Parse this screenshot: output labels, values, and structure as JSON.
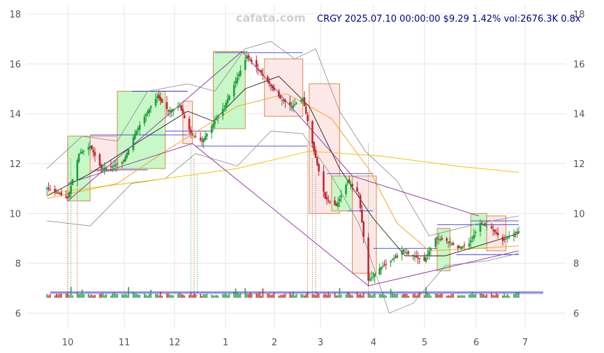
{
  "header": {
    "watermark": "cafata.com",
    "quote": "CRGY 2025.07.10 00:00:00 $9.29 1.42% vol:2676.3K 0.8x"
  },
  "chart_data": {
    "type": "candlestick",
    "symbol": "CRGY",
    "last_date": "2025.07.10",
    "last_price": 9.29,
    "change_pct": 1.42,
    "volume_k": 2676.3,
    "volume_ratio": 0.8,
    "x_tick_labels": [
      "10",
      "11",
      "12",
      "1",
      "2",
      "3",
      "4",
      "5",
      "6",
      "7"
    ],
    "y_ticks": [
      6,
      8,
      10,
      12,
      14,
      16,
      18
    ],
    "ylim": [
      5.6,
      18.4
    ],
    "grid": true,
    "approx_close_path": [
      [
        "2024-09-18",
        11.0
      ],
      [
        "2024-09-25",
        10.8
      ],
      [
        "2024-10-01",
        10.6
      ],
      [
        "2024-10-08",
        12.4
      ],
      [
        "2024-10-15",
        12.7
      ],
      [
        "2024-10-22",
        11.8
      ],
      [
        "2024-10-29",
        11.9
      ],
      [
        "2024-11-05",
        12.1
      ],
      [
        "2024-11-12",
        13.2
      ],
      [
        "2024-11-19",
        14.0
      ],
      [
        "2024-11-26",
        14.7
      ],
      [
        "2024-12-03",
        14.1
      ],
      [
        "2024-12-10",
        14.3
      ],
      [
        "2024-12-17",
        13.2
      ],
      [
        "2024-12-24",
        12.9
      ],
      [
        "2024-12-31",
        13.6
      ],
      [
        "2025-01-07",
        14.3
      ],
      [
        "2025-01-14",
        15.3
      ],
      [
        "2025-01-21",
        16.3
      ],
      [
        "2025-01-28",
        15.8
      ],
      [
        "2025-02-04",
        15.2
      ],
      [
        "2025-02-11",
        14.6
      ],
      [
        "2025-02-18",
        14.3
      ],
      [
        "2025-02-25",
        14.6
      ],
      [
        "2025-03-04",
        12.5
      ],
      [
        "2025-03-11",
        10.6
      ],
      [
        "2025-03-18",
        10.3
      ],
      [
        "2025-03-25",
        11.3
      ],
      [
        "2025-04-01",
        10.8
      ],
      [
        "2025-04-07",
        7.3
      ],
      [
        "2025-04-14",
        7.8
      ],
      [
        "2025-04-21",
        8.1
      ],
      [
        "2025-04-28",
        8.5
      ],
      [
        "2025-05-05",
        8.3
      ],
      [
        "2025-05-12",
        8.1
      ],
      [
        "2025-05-19",
        9.0
      ],
      [
        "2025-05-26",
        8.9
      ],
      [
        "2025-06-02",
        8.6
      ],
      [
        "2025-06-09",
        8.8
      ],
      [
        "2025-06-16",
        9.6
      ],
      [
        "2025-06-23",
        9.4
      ],
      [
        "2025-06-30",
        8.9
      ],
      [
        "2025-07-07",
        9.2
      ],
      [
        "2025-07-10",
        9.29
      ]
    ],
    "approx_ma_long_path": [
      [
        "2024-09-18",
        10.8
      ],
      [
        "2024-12-01",
        11.4
      ],
      [
        "2025-01-15",
        11.8
      ],
      [
        "2025-03-01",
        12.5
      ],
      [
        "2025-04-15",
        12.3
      ],
      [
        "2025-06-01",
        11.9
      ],
      [
        "2025-07-10",
        11.65
      ]
    ],
    "approx_ma_mid_path": [
      [
        "2024-09-18",
        10.6
      ],
      [
        "2024-11-01",
        11.2
      ],
      [
        "2024-12-01",
        12.5
      ],
      [
        "2025-01-15",
        14.3
      ],
      [
        "2025-02-15",
        14.8
      ],
      [
        "2025-03-15",
        13.8
      ],
      [
        "2025-04-07",
        11.8
      ],
      [
        "2025-04-25",
        9.6
      ],
      [
        "2025-05-15",
        8.5
      ],
      [
        "2025-06-15",
        8.6
      ],
      [
        "2025-07-10",
        8.7
      ]
    ],
    "approx_ma_short_path": [
      [
        "2024-09-18",
        10.7
      ],
      [
        "2024-10-15",
        11.6
      ],
      [
        "2024-11-15",
        12.9
      ],
      [
        "2024-12-15",
        14.1
      ],
      [
        "2024-12-31",
        13.7
      ],
      [
        "2025-01-20",
        15.0
      ],
      [
        "2025-02-10",
        15.5
      ],
      [
        "2025-03-01",
        14.3
      ],
      [
        "2025-03-20",
        11.8
      ],
      [
        "2025-04-10",
        9.8
      ],
      [
        "2025-04-30",
        8.3
      ],
      [
        "2025-05-25",
        8.3
      ],
      [
        "2025-06-20",
        8.8
      ],
      [
        "2025-07-10",
        9.2
      ]
    ],
    "approx_bollinger_upper_path": [
      [
        "2024-09-18",
        11.8
      ],
      [
        "2024-10-10",
        13.1
      ],
      [
        "2024-11-01",
        12.9
      ],
      [
        "2024-11-20",
        14.9
      ],
      [
        "2024-12-15",
        15.2
      ],
      [
        "2025-01-01",
        14.9
      ],
      [
        "2025-01-20",
        16.6
      ],
      [
        "2025-02-05",
        16.9
      ],
      [
        "2025-02-20",
        16.2
      ],
      [
        "2025-03-05",
        16.6
      ],
      [
        "2025-03-20",
        14.1
      ],
      [
        "2025-04-05",
        12.5
      ],
      [
        "2025-04-25",
        11.3
      ],
      [
        "2025-05-15",
        9.1
      ],
      [
        "2025-06-15",
        9.6
      ],
      [
        "2025-07-10",
        9.9
      ]
    ],
    "approx_bollinger_lower_path": [
      [
        "2024-09-18",
        9.7
      ],
      [
        "2024-10-15",
        9.5
      ],
      [
        "2024-11-10",
        11.2
      ],
      [
        "2024-12-01",
        11.4
      ],
      [
        "2024-12-20",
        12.4
      ],
      [
        "2025-01-15",
        11.9
      ],
      [
        "2025-02-05",
        13.3
      ],
      [
        "2025-02-25",
        13.2
      ],
      [
        "2025-03-15",
        11.5
      ],
      [
        "2025-04-01",
        9.6
      ],
      [
        "2025-04-20",
        6.0
      ],
      [
        "2025-05-05",
        6.4
      ],
      [
        "2025-05-25",
        7.9
      ],
      [
        "2025-06-20",
        8.1
      ],
      [
        "2025-07-10",
        8.4
      ]
    ],
    "zones": [
      {
        "kind": "up",
        "start": "2024-10-01",
        "end": "2024-10-15",
        "low": 10.5,
        "high": 13.1
      },
      {
        "kind": "down",
        "start": "2024-10-15",
        "end": "2024-11-01",
        "low": 11.7,
        "high": 13.1
      },
      {
        "kind": "up",
        "start": "2024-11-01",
        "end": "2024-12-01",
        "low": 11.8,
        "high": 14.9
      },
      {
        "kind": "down",
        "start": "2024-12-12",
        "end": "2024-12-18",
        "low": 12.8,
        "high": 14.5
      },
      {
        "kind": "up",
        "start": "2024-12-31",
        "end": "2025-01-20",
        "low": 13.4,
        "high": 16.5
      },
      {
        "kind": "down",
        "start": "2025-02-01",
        "end": "2025-02-25",
        "low": 13.9,
        "high": 16.2
      },
      {
        "kind": "down",
        "start": "2025-03-01",
        "end": "2025-03-20",
        "low": 10.0,
        "high": 15.2
      },
      {
        "kind": "up",
        "start": "2025-03-15",
        "end": "2025-03-28",
        "low": 10.1,
        "high": 11.5
      },
      {
        "kind": "down",
        "start": "2025-03-28",
        "end": "2025-04-12",
        "low": 7.6,
        "high": 11.5
      },
      {
        "kind": "up",
        "start": "2025-05-20",
        "end": "2025-05-28",
        "low": 7.7,
        "high": 9.4
      },
      {
        "kind": "up",
        "start": "2025-06-10",
        "end": "2025-06-20",
        "low": 8.6,
        "high": 10.0
      },
      {
        "kind": "down",
        "start": "2025-06-20",
        "end": "2025-07-02",
        "low": 8.5,
        "high": 9.9
      }
    ],
    "levels": [
      {
        "start": "2024-10-15",
        "end": "2024-12-15",
        "y": 13.15
      },
      {
        "start": "2024-10-18",
        "end": "2024-11-20",
        "y": 11.75
      },
      {
        "start": "2024-11-10",
        "end": "2024-12-15",
        "y": 14.9
      },
      {
        "start": "2024-12-01",
        "end": "2024-12-31",
        "y": 13.3
      },
      {
        "start": "2024-12-20",
        "end": "2025-02-28",
        "y": 12.7
      },
      {
        "start": "2025-01-01",
        "end": "2025-02-25",
        "y": 16.45
      },
      {
        "start": "2025-03-12",
        "end": "2025-04-10",
        "y": 11.6
      },
      {
        "start": "2025-03-25",
        "end": "2025-04-10",
        "y": 10.1
      },
      {
        "start": "2025-04-10",
        "end": "2025-05-20",
        "y": 8.6
      },
      {
        "start": "2025-05-20",
        "end": "2025-07-10",
        "y": 9.55
      },
      {
        "start": "2025-06-01",
        "end": "2025-07-10",
        "y": 8.35
      },
      {
        "start": "2025-06-10",
        "end": "2025-07-10",
        "y": 9.7
      }
    ],
    "trendlines": [
      {
        "from": [
          "2024-10-01",
          10.5
        ],
        "to": [
          "2025-01-18",
          16.5
        ]
      },
      {
        "from": [
          "2024-10-01",
          11.2
        ],
        "to": [
          "2024-12-18",
          12.8
        ]
      },
      {
        "from": [
          "2024-12-18",
          12.8
        ],
        "to": [
          "2025-04-07",
          7.1
        ]
      },
      {
        "from": [
          "2025-01-18",
          16.5
        ],
        "to": [
          "2025-03-28",
          11.5
        ]
      },
      {
        "from": [
          "2025-03-28",
          11.5
        ],
        "to": [
          "2025-06-15",
          9.9
        ]
      },
      {
        "from": [
          "2025-04-07",
          7.1
        ],
        "to": [
          "2025-07-10",
          8.5
        ]
      }
    ],
    "signal_dates": [
      "2024-10-01",
      "2024-10-03",
      "2024-10-07",
      "2024-12-17",
      "2024-12-19",
      "2024-12-21",
      "2025-02-28",
      "2025-03-03",
      "2025-03-05",
      "2025-04-07"
    ]
  }
}
